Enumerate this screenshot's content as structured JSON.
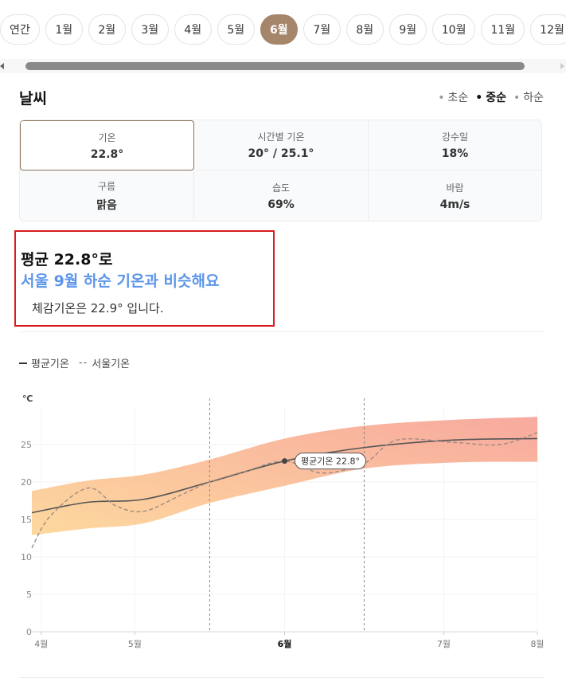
{
  "months": [
    "연간",
    "1월",
    "2월",
    "3월",
    "4월",
    "5월",
    "6월",
    "7월",
    "8월",
    "9월",
    "10월",
    "11월",
    "12월"
  ],
  "active_month_index": 6,
  "weather": {
    "title": "날씨",
    "periods": [
      {
        "label": "초순",
        "active": false
      },
      {
        "label": "중순",
        "active": true
      },
      {
        "label": "하순",
        "active": false
      }
    ]
  },
  "stats": [
    {
      "label": "기온",
      "value": "22.8°",
      "active": true
    },
    {
      "label": "시간별 기온",
      "value": "20° / 25.1°",
      "active": false
    },
    {
      "label": "강수일",
      "value": "18%",
      "active": false
    },
    {
      "label": "구름",
      "value": "맑음",
      "active": false
    },
    {
      "label": "습도",
      "value": "69%",
      "active": false
    },
    {
      "label": "바람",
      "value": "4m/s",
      "active": false
    }
  ],
  "summary": {
    "line1": "평균 22.8°로",
    "line2": "서울 9월 하순 기온과 비슷해요",
    "line3": "체감기온은 22.9° 입니다."
  },
  "legend": {
    "solid_mark": "–",
    "solid_label": "평균기온",
    "dashed_mark": "--",
    "dashed_label": "서울기온"
  },
  "colors": {
    "accent": "#a5866a",
    "highlight": "#5b95ea",
    "annotation_border": "#d71d1d",
    "band_top": "#f7a094",
    "band_bottom": "#fdd493",
    "avg_line": "#555555",
    "seoul_line": "#a08b80"
  },
  "chart_data": {
    "type": "line",
    "unit": "℃",
    "y_ticks": [
      0,
      5,
      10,
      15,
      20,
      25
    ],
    "ylim": [
      0,
      30
    ],
    "x_labels": [
      {
        "label": "4월",
        "x": 0,
        "bold": false
      },
      {
        "label": "5월",
        "x": 1,
        "bold": false
      },
      {
        "label": "6월",
        "x": 2.6,
        "bold": true
      },
      {
        "label": "7월",
        "x": 4.3,
        "bold": false
      },
      {
        "label": "8월",
        "x": 5.3,
        "bold": false
      }
    ],
    "xlim": [
      -0.1,
      5.3
    ],
    "vertical_markers": [
      1.8,
      3.45
    ],
    "band_x": [
      -0.1,
      0.5,
      1.1,
      1.8,
      2.6,
      3.45,
      4.4,
      5.3
    ],
    "band_high": [
      18.8,
      20.2,
      21.0,
      23.0,
      25.8,
      27.5,
      28.3,
      28.7
    ],
    "band_low": [
      12.9,
      13.8,
      14.5,
      17.2,
      19.5,
      21.8,
      22.6,
      22.7
    ],
    "series": [
      {
        "name": "평균기온",
        "style": "solid",
        "x": [
          -0.1,
          0.5,
          1.1,
          1.8,
          2.6,
          3.45,
          4.4,
          5.3
        ],
        "y": [
          15.9,
          17.3,
          17.7,
          20.0,
          22.8,
          24.6,
          25.6,
          25.8
        ]
      },
      {
        "name": "서울기온",
        "style": "dashed",
        "x": [
          -0.1,
          0.1,
          0.5,
          0.8,
          1.1,
          1.5,
          1.8,
          2.2,
          2.6,
          3.0,
          3.45,
          3.8,
          4.4,
          4.9,
          5.3
        ],
        "y": [
          11.2,
          15.5,
          19.2,
          16.8,
          16.1,
          18.3,
          20.0,
          21.5,
          22.8,
          21.2,
          22.5,
          25.6,
          25.3,
          25.0,
          26.6
        ]
      }
    ],
    "annotation": {
      "label": "평균기온 22.8°",
      "x": 2.6,
      "y": 22.8
    }
  }
}
